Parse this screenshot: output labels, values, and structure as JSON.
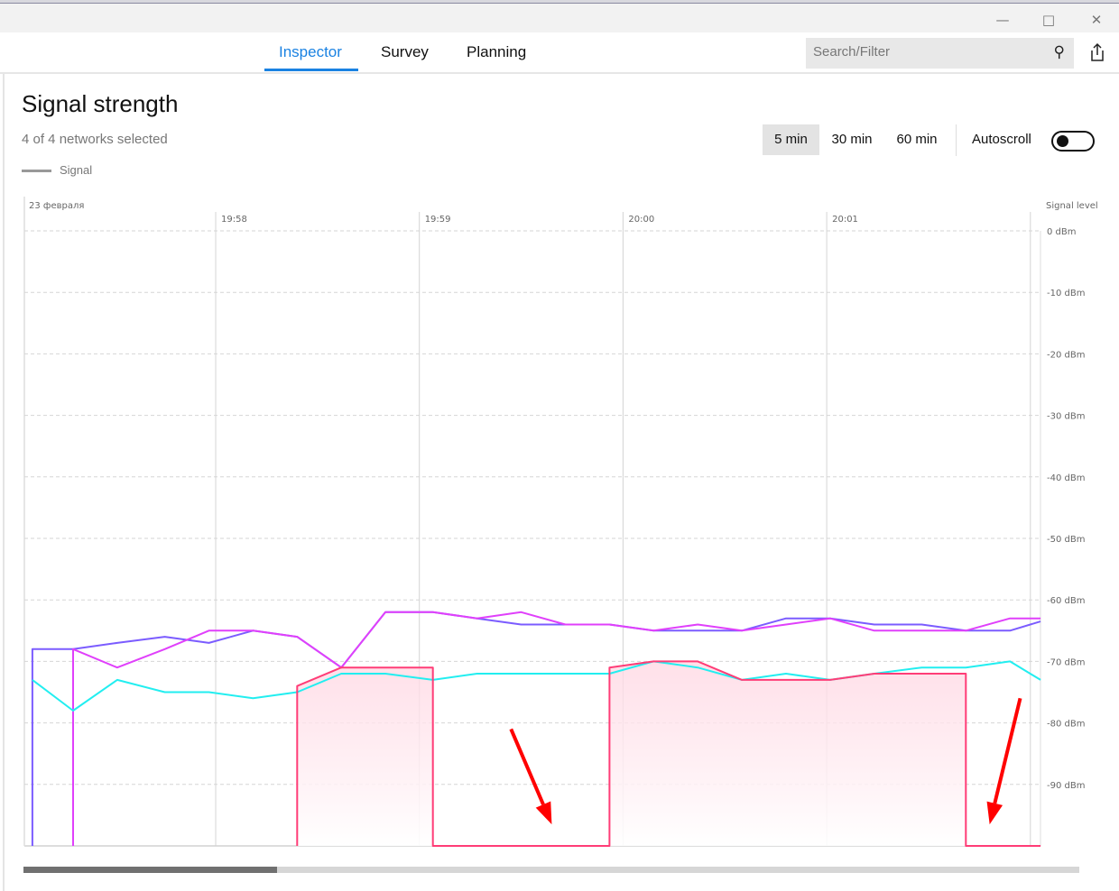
{
  "window": {
    "controls": [
      "minimize-icon",
      "maximize-icon",
      "close-icon"
    ]
  },
  "nav": {
    "tabs": [
      {
        "label": "Inspector",
        "active": true
      },
      {
        "label": "Survey",
        "active": false
      },
      {
        "label": "Planning",
        "active": false
      }
    ],
    "search": {
      "placeholder": "Search/Filter",
      "value": "",
      "icon": "search-icon"
    },
    "share_icon": "share-icon",
    "accent": "#1a82e2"
  },
  "panel": {
    "title": "Signal strength",
    "subtitle": "4 of 4 networks selected",
    "legend_label": "Signal",
    "ranges": [
      {
        "label": "5 min",
        "selected": true
      },
      {
        "label": "30 min",
        "selected": false
      },
      {
        "label": "60 min",
        "selected": false
      }
    ],
    "autoscroll_label": "Autoscroll",
    "autoscroll_on": false,
    "scroll_position": 0.24
  },
  "chart_data": {
    "type": "line",
    "date_label": "23 февраля",
    "ylabel": "Signal level",
    "x_ticks": [
      "19:58",
      "19:59",
      "20:00",
      "20:01",
      "20:02"
    ],
    "x_tick_labels": [
      "19:58",
      "19:59",
      "20:00",
      "20:01",
      ""
    ],
    "xlim": [
      "19:57:04",
      "20:02:03"
    ],
    "ylim": [
      -100,
      0
    ],
    "y_ticks": [
      0,
      -10,
      -20,
      -30,
      -40,
      -50,
      -60,
      -70,
      -80,
      -90
    ],
    "y_tick_labels": [
      "0 dBm",
      "-10 dBm",
      "-20 dBm",
      "-30 dBm",
      "-40 dBm",
      "-50 dBm",
      "-60 dBm",
      "-70 dBm",
      "-80 dBm",
      "-90 dBm"
    ],
    "grid": true,
    "series": [
      {
        "color": "#7b5cff",
        "fill": false,
        "points": [
          [
            "19:57:06",
            -100
          ],
          [
            "19:57:06",
            -68
          ],
          [
            "19:57:18",
            -68
          ],
          [
            "19:57:31",
            -67
          ],
          [
            "19:57:45",
            -66
          ],
          [
            "19:57:58",
            -67
          ],
          [
            "19:58:11",
            -65
          ],
          [
            "19:58:24",
            -66
          ],
          [
            "19:58:37",
            -71
          ],
          [
            "19:58:50",
            -62
          ],
          [
            "19:59:04",
            -62
          ],
          [
            "19:59:17",
            -63
          ],
          [
            "19:59:30",
            -64
          ],
          [
            "19:59:43",
            -64
          ],
          [
            "19:59:56",
            -64
          ],
          [
            "20:00:09",
            -65
          ],
          [
            "20:00:22",
            -65
          ],
          [
            "20:00:35",
            -65
          ],
          [
            "20:00:48",
            -63
          ],
          [
            "20:01:01",
            -63
          ],
          [
            "20:01:14",
            -64
          ],
          [
            "20:01:28",
            -64
          ],
          [
            "20:01:41",
            -65
          ],
          [
            "20:01:54",
            -65
          ],
          [
            "20:02:03",
            -63.5
          ]
        ]
      },
      {
        "color": "#e040fb",
        "fill": false,
        "points": [
          [
            "19:57:18",
            -100
          ],
          [
            "19:57:18",
            -68
          ],
          [
            "19:57:31",
            -71
          ],
          [
            "19:57:45",
            -68
          ],
          [
            "19:57:58",
            -65
          ],
          [
            "19:58:11",
            -65
          ],
          [
            "19:58:24",
            -66
          ],
          [
            "19:58:37",
            -71
          ],
          [
            "19:58:50",
            -62
          ],
          [
            "19:59:04",
            -62
          ],
          [
            "19:59:17",
            -63
          ],
          [
            "19:59:30",
            -62
          ],
          [
            "19:59:43",
            -64
          ],
          [
            "19:59:56",
            -64
          ],
          [
            "20:00:09",
            -65
          ],
          [
            "20:00:22",
            -64
          ],
          [
            "20:00:35",
            -65
          ],
          [
            "20:00:48",
            -64
          ],
          [
            "20:01:01",
            -63
          ],
          [
            "20:01:14",
            -65
          ],
          [
            "20:01:28",
            -65
          ],
          [
            "20:01:41",
            -65
          ],
          [
            "20:01:54",
            -63
          ],
          [
            "20:02:03",
            -63
          ]
        ]
      },
      {
        "color": "#22eef0",
        "fill": false,
        "points": [
          [
            "19:57:06",
            -73
          ],
          [
            "19:57:18",
            -78
          ],
          [
            "19:57:31",
            -73
          ],
          [
            "19:57:45",
            -75
          ],
          [
            "19:57:58",
            -75
          ],
          [
            "19:58:11",
            -76
          ],
          [
            "19:58:24",
            -75
          ],
          [
            "19:58:37",
            -72
          ],
          [
            "19:58:50",
            -72
          ],
          [
            "19:59:04",
            -73
          ],
          [
            "19:59:17",
            -72
          ],
          [
            "19:59:30",
            -72
          ],
          [
            "19:59:43",
            -72
          ],
          [
            "19:59:56",
            -72
          ],
          [
            "20:00:09",
            -70
          ],
          [
            "20:00:22",
            -71
          ],
          [
            "20:00:35",
            -73
          ],
          [
            "20:00:48",
            -72
          ],
          [
            "20:01:01",
            -73
          ],
          [
            "20:01:14",
            -72
          ],
          [
            "20:01:28",
            -71
          ],
          [
            "20:01:41",
            -71
          ],
          [
            "20:01:54",
            -70
          ],
          [
            "20:02:03",
            -73
          ]
        ]
      },
      {
        "color": "#ff3d77",
        "fill": true,
        "points": [
          [
            "19:58:24",
            -100
          ],
          [
            "19:58:24",
            -74
          ],
          [
            "19:58:37",
            -71
          ],
          [
            "19:58:50",
            -71
          ],
          [
            "19:59:04",
            -71
          ],
          [
            "19:59:04",
            -100
          ],
          [
            "19:59:56",
            -100
          ],
          [
            "19:59:56",
            -71
          ],
          [
            "20:00:09",
            -70
          ],
          [
            "20:00:22",
            -70
          ],
          [
            "20:00:35",
            -73
          ],
          [
            "20:00:48",
            -73
          ],
          [
            "20:01:01",
            -73
          ],
          [
            "20:01:14",
            -72
          ],
          [
            "20:01:28",
            -72
          ],
          [
            "20:01:41",
            -72
          ],
          [
            "20:01:41",
            -100
          ],
          [
            "20:02:03",
            -100
          ]
        ]
      }
    ],
    "annotations": [
      {
        "type": "arrow",
        "color": "#ff0000",
        "from": [
          "19:59:27",
          -81
        ],
        "to": [
          "19:59:39",
          -96.5
        ]
      },
      {
        "type": "arrow",
        "color": "#ff0000",
        "from": [
          "20:01:57",
          -76
        ],
        "to": [
          "20:01:48",
          -96.5
        ]
      }
    ]
  }
}
